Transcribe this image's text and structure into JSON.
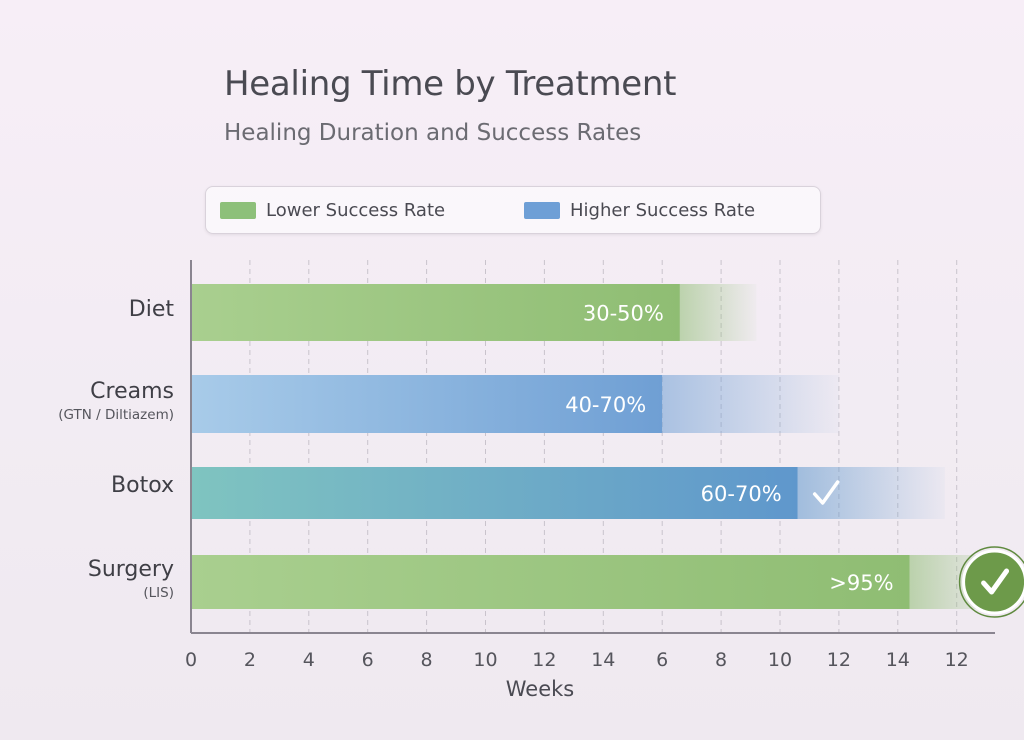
{
  "chart_data": {
    "type": "bar",
    "orientation": "horizontal",
    "title": "Healing Time by Treatment",
    "subtitle": "Healing Duration and Success Rates",
    "xlabel": "Weeks",
    "x_tick_labels": [
      "0",
      "2",
      "4",
      "6",
      "8",
      "10",
      "12",
      "14",
      "6",
      "8",
      "10",
      "12",
      "14",
      "12"
    ],
    "legend": {
      "placement": "top",
      "entries": [
        {
          "label": "Lower Success Rate",
          "color": "#8dc07a"
        },
        {
          "label": "Higher Success Rate",
          "color": "#6e9fd6"
        }
      ]
    },
    "grid": true,
    "categories": [
      {
        "name": "Diet",
        "sub": "",
        "success_rate": "30-50%",
        "color": "green",
        "checked": false,
        "solid_end_tick": 8.3,
        "fade_end_tick": 9.6
      },
      {
        "name": "Creams",
        "sub": "(GTN / Diltiazem)",
        "success_rate": "40-70%",
        "color": "blue",
        "checked": false,
        "solid_end_tick": 8.0,
        "fade_end_tick": 11.0
      },
      {
        "name": "Botox",
        "sub": "",
        "success_rate": "60-70%",
        "color": "teal-blue",
        "checked": true,
        "solid_end_tick": 10.3,
        "fade_end_tick": 12.8
      },
      {
        "name": "Surgery",
        "sub": "(LIS)",
        "success_rate": ">95%",
        "color": "green",
        "checked": true,
        "highlight": true,
        "solid_end_tick": 12.2,
        "fade_end_tick": 13.7
      }
    ]
  }
}
